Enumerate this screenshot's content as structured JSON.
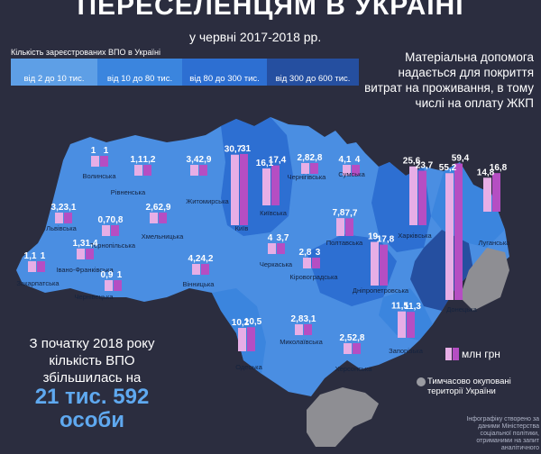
{
  "title": "ПЕРЕСЕЛЕНЦЯМ В УКРАЇНІ",
  "subtitle": "у червні  2017-2018 рр.",
  "legend": {
    "caption": "Кількість зареєстрованих ВПО в Україні",
    "ranges": [
      {
        "label": "від 2 до 10 тис.",
        "color": "#5e9fe6"
      },
      {
        "label": "від 10 до 80 тис.",
        "color": "#3b85de"
      },
      {
        "label": "від 80 до 300 тис.",
        "color": "#2d6fd2"
      },
      {
        "label": "від 300 до 600 тис.",
        "color": "#254fa0"
      }
    ],
    "unit": "млн грн",
    "occupied": "Тимчасово окуповані території України"
  },
  "note": "Матеріальна допомога надається для покриття витрат на проживання, в тому числі на оплату ЖКП",
  "stat": {
    "intro": "З початку 2018 року кількість ВПО збільшилась на",
    "value": "21 тис. 592 особи"
  },
  "credit": "Інфографіку створено за даними Міністерства соціальної політики, отриманими на запит аналітичного",
  "colors": {
    "bar_2017": "#e7aee6",
    "bar_2018": "#b54ec3",
    "occupied": "#8e8e93",
    "background": "#2b2d3f"
  },
  "regions": [
    {
      "name": "Волинська",
      "v2017": 1,
      "v2018": 1
    },
    {
      "name": "Рівненська",
      "v2017": 1.1,
      "v2018": 1.2
    },
    {
      "name": "Житомирська",
      "v2017": 3.4,
      "v2018": 2.9
    },
    {
      "name": "Київ",
      "v2017": 30.7,
      "v2018": 31
    },
    {
      "name": "Київська",
      "v2017": 16.1,
      "v2018": 17.4
    },
    {
      "name": "Чернігівська",
      "v2017": 2.8,
      "v2018": 2.8
    },
    {
      "name": "Сумська",
      "v2017": 4.1,
      "v2018": 4
    },
    {
      "name": "Харківська",
      "v2017": 25.6,
      "v2018": 23.7
    },
    {
      "name": "Донецька",
      "v2017": 55.2,
      "v2018": 59.4
    },
    {
      "name": "Луганська",
      "v2017": 14.8,
      "v2018": 16.8
    },
    {
      "name": "Львівська",
      "v2017": 3.2,
      "v2018": 3.1
    },
    {
      "name": "Тернопільська",
      "v2017": 0.7,
      "v2018": 0.8
    },
    {
      "name": "Хмельницька",
      "v2017": 2.6,
      "v2018": 2.9
    },
    {
      "name": "Полтавська",
      "v2017": 7.8,
      "v2018": 7.7
    },
    {
      "name": "Дніпропетровська",
      "v2017": 19,
      "v2018": 17.8
    },
    {
      "name": "Закарпатська",
      "v2017": 1.1,
      "v2018": 1
    },
    {
      "name": "Івано-Франківська",
      "v2017": 1.3,
      "v2018": 1.4
    },
    {
      "name": "Вінницька",
      "v2017": 4.2,
      "v2018": 4.2
    },
    {
      "name": "Черкаська",
      "v2017": 4,
      "v2018": 3.7
    },
    {
      "name": "Кіровоградська",
      "v2017": 2.8,
      "v2018": 3
    },
    {
      "name": "Чернівецька",
      "v2017": 0.9,
      "v2018": 1
    },
    {
      "name": "Одеська",
      "v2017": 10.2,
      "v2018": 10.5
    },
    {
      "name": "Миколаївська",
      "v2017": 2.8,
      "v2018": 3.1
    },
    {
      "name": "Херсонська",
      "v2017": 2.5,
      "v2018": 2.8
    },
    {
      "name": "Запорізька",
      "v2017": 11.5,
      "v2018": 11.3
    }
  ]
}
